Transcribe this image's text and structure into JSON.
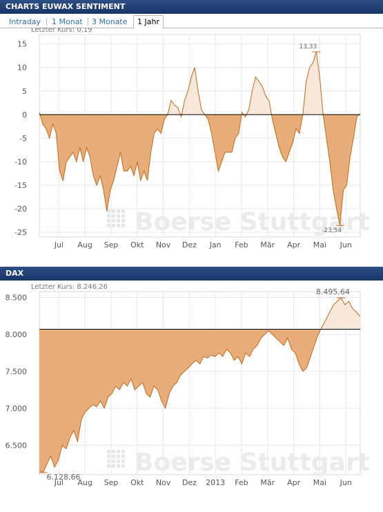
{
  "panel1": {
    "header": "CHARTS EUWAX SENTIMENT",
    "tabs": [
      {
        "label": "Intraday",
        "active": false
      },
      {
        "label": "1 Monat",
        "active": false
      },
      {
        "label": "3 Monate",
        "active": false
      },
      {
        "label": "1 Jahr",
        "active": true
      }
    ],
    "last_price": "Letzter Kurs: 0,19"
  },
  "panel2": {
    "header": "DAX",
    "last_price": "Letzter Kurs:  8.246,26"
  },
  "watermark": "Boerse Stuttgart",
  "colors": {
    "fill": "#e8ad78",
    "fill_light": "#f8e8dc",
    "line": "#c06818",
    "header": "#1f3f73"
  },
  "chart_data": [
    {
      "type": "area",
      "series": [
        {
          "values": [
            0.5,
            -2,
            -3,
            -5,
            -2,
            -4,
            -12,
            -14,
            -10,
            -9,
            -8,
            -10,
            -7,
            -10,
            -7,
            -9,
            -13,
            -15,
            -13,
            -16,
            -20.5,
            -16,
            -14,
            -11,
            -8,
            -12,
            -12,
            -11,
            -13,
            -10,
            -14,
            -12,
            -14,
            -8,
            -4,
            -3,
            -4,
            -1,
            0,
            3,
            2,
            1.5,
            -0.5,
            3,
            5,
            8,
            10,
            5,
            1,
            0,
            -1,
            -4,
            -8,
            -12,
            -10,
            -8,
            -8,
            -8,
            -5,
            -4,
            0.5,
            -0.5,
            1,
            5,
            8,
            7,
            6,
            4,
            3,
            -1,
            -4,
            -7,
            -9,
            -10,
            -8,
            -6,
            -3,
            -4,
            0,
            7,
            10,
            11,
            13.33,
            8,
            0,
            -5,
            -10,
            -16,
            -20,
            -23.54,
            -16,
            -15,
            -9,
            -5,
            -0.5,
            0.19
          ]
        }
      ],
      "x_tick_labels": [
        "Jul",
        "Aug",
        "Sep",
        "Okt",
        "Nov",
        "Dez",
        "Jan",
        "Feb",
        "Mär",
        "Apr",
        "Mai",
        "Jun"
      ],
      "y_ticks": [
        15,
        10,
        5,
        0,
        -5,
        -10,
        -15,
        -20,
        -25
      ],
      "y_tick_labels": [
        "15",
        "10",
        "5",
        "0",
        "-5",
        "-10",
        "-15",
        "-20",
        "-25"
      ],
      "ylim": [
        -26,
        17
      ],
      "baseline": 0,
      "max_label": "13,33",
      "min_label": "-23,54",
      "grid": true
    },
    {
      "type": "area",
      "series": [
        {
          "values": [
            6150,
            6128.66,
            6250,
            6350,
            6200,
            6300,
            6500,
            6450,
            6600,
            6700,
            6550,
            6850,
            6950,
            7000,
            7050,
            7020,
            7100,
            7000,
            7150,
            7200,
            7300,
            7250,
            7350,
            7300,
            7400,
            7250,
            7300,
            7350,
            7200,
            7150,
            7300,
            7250,
            7100,
            7000,
            7200,
            7300,
            7350,
            7450,
            7500,
            7550,
            7600,
            7650,
            7600,
            7700,
            7680,
            7720,
            7700,
            7750,
            7700,
            7800,
            7750,
            7650,
            7700,
            7600,
            7750,
            7700,
            7800,
            7850,
            7950,
            8000,
            8050,
            8000,
            7950,
            7900,
            7850,
            7950,
            7800,
            7750,
            7600,
            7500,
            7550,
            7700,
            7850,
            8000,
            8100,
            8200,
            8300,
            8400,
            8450,
            8495.64,
            8400,
            8450,
            8350,
            8300,
            8246.26
          ]
        }
      ],
      "x_tick_labels": [
        "Jul",
        "Aug",
        "Sep",
        "Okt",
        "Nov",
        "Dez",
        "2013",
        "Feb",
        "Mär",
        "Apr",
        "Mai",
        "Jun"
      ],
      "y_ticks": [
        8500,
        8000,
        7500,
        7000,
        6500
      ],
      "y_tick_labels": [
        "8.500",
        "8.000",
        "7.500",
        "7.000",
        "6.500"
      ],
      "ylim": [
        6100,
        8580
      ],
      "baseline": 8070,
      "max_label": "8.495,64",
      "min_label": "6.128,66",
      "grid": true
    }
  ]
}
